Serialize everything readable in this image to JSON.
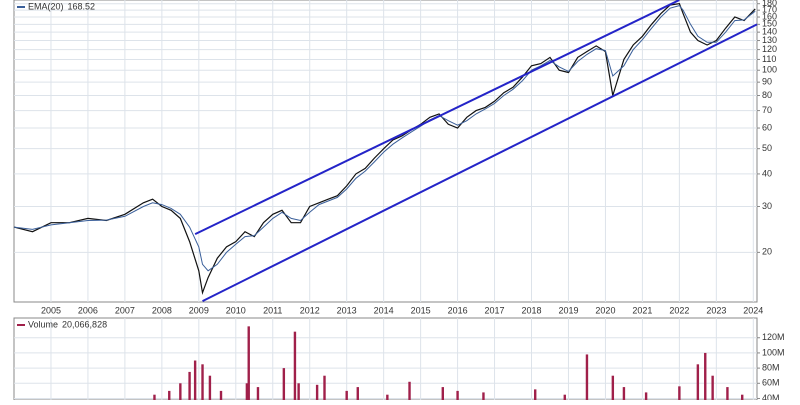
{
  "chart_data": [
    {
      "type": "line",
      "log_scale": true,
      "grid": true,
      "xlim": [
        2004,
        2024.1
      ],
      "xticks": [
        2005,
        2006,
        2007,
        2008,
        2009,
        2010,
        2011,
        2012,
        2013,
        2014,
        2015,
        2016,
        2017,
        2018,
        2019,
        2020,
        2021,
        2022,
        2023,
        2024
      ],
      "ylim": [
        12.9,
        186
      ],
      "yticks": [
        20,
        30,
        40,
        50,
        60,
        70,
        80,
        90,
        100,
        110,
        120,
        130,
        140,
        150,
        160,
        170,
        180
      ],
      "x": [
        2004.0,
        2004.5,
        2005.0,
        2005.5,
        2006.0,
        2006.5,
        2007.0,
        2007.5,
        2007.75,
        2008.0,
        2008.25,
        2008.5,
        2008.75,
        2009.0,
        2009.1,
        2009.25,
        2009.5,
        2009.75,
        2010.0,
        2010.25,
        2010.5,
        2010.75,
        2011.0,
        2011.25,
        2011.5,
        2011.75,
        2012.0,
        2012.25,
        2012.5,
        2012.75,
        2013.0,
        2013.25,
        2013.5,
        2013.75,
        2014.0,
        2014.25,
        2014.5,
        2014.75,
        2015.0,
        2015.25,
        2015.5,
        2015.75,
        2016.0,
        2016.25,
        2016.5,
        2016.75,
        2017.0,
        2017.25,
        2017.5,
        2017.75,
        2018.0,
        2018.25,
        2018.5,
        2018.75,
        2019.0,
        2019.25,
        2019.5,
        2019.75,
        2020.0,
        2020.2,
        2020.5,
        2020.75,
        2021.0,
        2021.25,
        2021.5,
        2021.75,
        2022.0,
        2022.1,
        2022.3,
        2022.5,
        2022.75,
        2023.0,
        2023.25,
        2023.5,
        2023.75,
        2024.05
      ],
      "series": [
        {
          "color": "#111111",
          "values": [
            25,
            24,
            26,
            26,
            27,
            26.5,
            28,
            31,
            32,
            30,
            29,
            27,
            22,
            17,
            14,
            16,
            19,
            21,
            22,
            24,
            23,
            26,
            28,
            29,
            26,
            26,
            30,
            31,
            32,
            33,
            36,
            40,
            42,
            46,
            50,
            54,
            56,
            59,
            62,
            66,
            68,
            62,
            60,
            66,
            70,
            72,
            76,
            82,
            86,
            94,
            104,
            106,
            112,
            100,
            98,
            112,
            118,
            124,
            118,
            80,
            110,
            125,
            135,
            150,
            165,
            178,
            180,
            165,
            140,
            130,
            125,
            130,
            145,
            160,
            155,
            172
          ]
        },
        {
          "name": "EMA(20)",
          "legend_value": "168.52",
          "color": "#3a5f9a",
          "values": [
            25,
            24.5,
            25.5,
            26,
            26.5,
            26.6,
            27.5,
            30,
            31,
            30.5,
            29.5,
            28,
            25,
            21,
            18,
            17,
            18,
            20,
            21.5,
            23,
            23.2,
            25,
            27,
            28.5,
            27,
            26.5,
            28.5,
            30.5,
            31.5,
            32.5,
            35,
            38.5,
            41,
            44.5,
            48.5,
            52,
            55,
            58,
            61,
            64.5,
            67,
            64,
            61.5,
            64,
            68,
            71,
            74.5,
            80,
            84.5,
            91,
            100,
            104,
            109,
            103,
            99,
            108,
            115,
            121,
            119,
            95,
            104,
            120,
            131,
            145,
            160,
            173,
            177,
            170,
            150,
            135,
            128,
            128,
            140,
            155,
            156,
            168.52
          ]
        }
      ],
      "trendlines": [
        {
          "color": "#2424c8",
          "x": [
            2008.9,
            2022.0
          ],
          "y": [
            23.5,
            186
          ]
        },
        {
          "color": "#2424c8",
          "x": [
            2009.1,
            2024.1
          ],
          "y": [
            13,
            150
          ]
        }
      ]
    },
    {
      "type": "bar",
      "grid": true,
      "xlim": [
        2004,
        2024.1
      ],
      "ylim": [
        38000000,
        146000000
      ],
      "yticks": [
        {
          "value": 40000000,
          "label": "40M"
        },
        {
          "value": 60000000,
          "label": "60M"
        },
        {
          "value": 80000000,
          "label": "80M"
        },
        {
          "value": 100000000,
          "label": "100M"
        },
        {
          "value": 120000000,
          "label": "120M"
        }
      ],
      "x": [
        2007.8,
        2008.2,
        2008.5,
        2008.75,
        2008.9,
        2009.1,
        2009.3,
        2009.6,
        2010.3,
        2010.35,
        2010.6,
        2011.3,
        2011.6,
        2011.7,
        2012.2,
        2012.4,
        2013.0,
        2013.3,
        2014.1,
        2014.7,
        2015.6,
        2016.0,
        2016.7,
        2018.1,
        2018.9,
        2019.5,
        2020.2,
        2020.5,
        2021.1,
        2022.0,
        2022.5,
        2022.7,
        2022.9,
        2023.3,
        2023.7
      ],
      "series": [
        {
          "name": "Volume",
          "legend_value": "20,066,828",
          "color": "#a0204a",
          "values": [
            45000000,
            50000000,
            60000000,
            75000000,
            90000000,
            85000000,
            70000000,
            50000000,
            60000000,
            135000000,
            55000000,
            80000000,
            128000000,
            60000000,
            58000000,
            70000000,
            50000000,
            55000000,
            45000000,
            62000000,
            55000000,
            50000000,
            48000000,
            52000000,
            45000000,
            98000000,
            70000000,
            55000000,
            48000000,
            56000000,
            85000000,
            100000000,
            70000000,
            55000000,
            45000000
          ]
        }
      ]
    }
  ]
}
